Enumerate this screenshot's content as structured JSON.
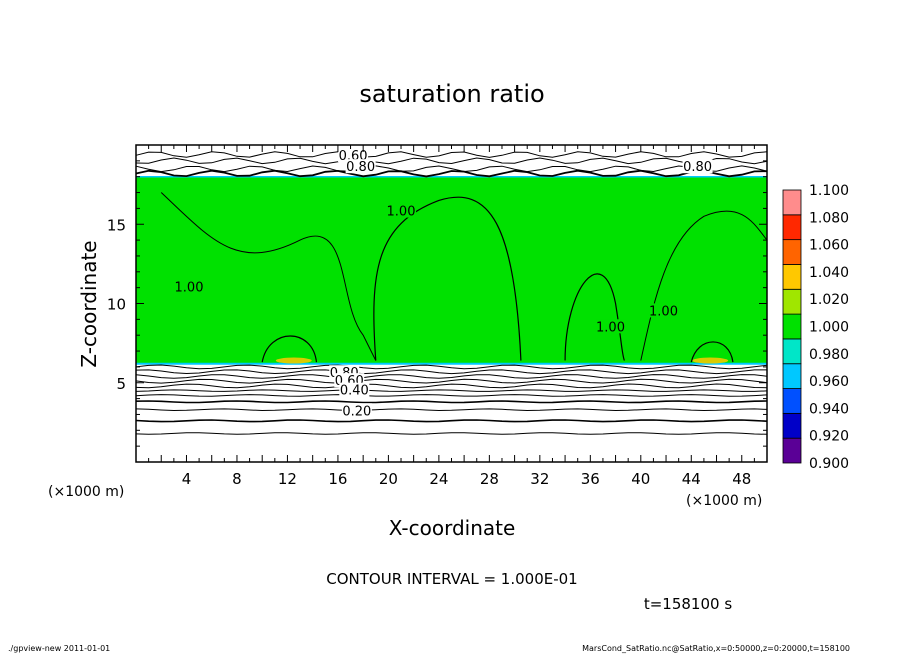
{
  "chart_data": {
    "type": "heatmap",
    "title": "saturation ratio",
    "xlabel": "X-coordinate",
    "ylabel": "Z-coordinate",
    "xunit": "(×1000 m)",
    "yunit": "(×1000 m)",
    "xlim": [
      0,
      50
    ],
    "ylim": [
      0,
      20
    ],
    "xticks": [
      4,
      8,
      12,
      16,
      20,
      24,
      28,
      32,
      36,
      40,
      44,
      48
    ],
    "yticks": [
      5,
      10,
      15
    ],
    "contour_interval_text": "CONTOUR INTERVAL = 1.000E-01",
    "time_text": "t=158100 s",
    "colorbar": {
      "levels": [
        0.9,
        0.92,
        0.94,
        0.96,
        0.98,
        1.0,
        1.02,
        1.04,
        1.06,
        1.08,
        1.1
      ],
      "labels": [
        "0.900",
        "0.920",
        "0.940",
        "0.960",
        "0.980",
        "1.000",
        "1.020",
        "1.040",
        "1.060",
        "1.080",
        "1.100"
      ],
      "colors": [
        "#5a0096",
        "#0000c8",
        "#0050ff",
        "#00c8ff",
        "#00e6c8",
        "#00e100",
        "#a0e600",
        "#ffc800",
        "#ff6400",
        "#ff2800",
        "#ff8c8c"
      ]
    },
    "saturated_layer": {
      "z_bottom": 6.2,
      "z_top": 18.0,
      "value": 1.0
    },
    "contour_labels": [
      {
        "text": "0.60",
        "x": 17.2,
        "z": 19.3
      },
      {
        "text": "0.80",
        "x": 17.8,
        "z": 18.6
      },
      {
        "text": "0.80",
        "x": 44.5,
        "z": 18.6
      },
      {
        "text": "1.00",
        "x": 21.0,
        "z": 15.8
      },
      {
        "text": "1.00",
        "x": 4.2,
        "z": 11.0
      },
      {
        "text": "1.00",
        "x": 37.6,
        "z": 8.5
      },
      {
        "text": "1.00",
        "x": 41.8,
        "z": 9.5
      },
      {
        "text": "0.80",
        "x": 16.5,
        "z": 5.6
      },
      {
        "text": "0.60",
        "x": 16.9,
        "z": 5.1
      },
      {
        "text": "0.40",
        "x": 17.3,
        "z": 4.5
      },
      {
        "text": "0.20",
        "x": 17.5,
        "z": 3.2
      }
    ],
    "lower_contours_z": [
      6.0,
      5.7,
      5.4,
      5.1,
      4.8,
      4.5,
      4.2,
      3.8,
      3.3,
      2.6,
      1.8
    ]
  },
  "footer": {
    "left": "./gpview-new   2011-01-01",
    "right": "MarsCond_SatRatio.nc@SatRatio,x=0:50000,z=0:20000,t=158100"
  }
}
